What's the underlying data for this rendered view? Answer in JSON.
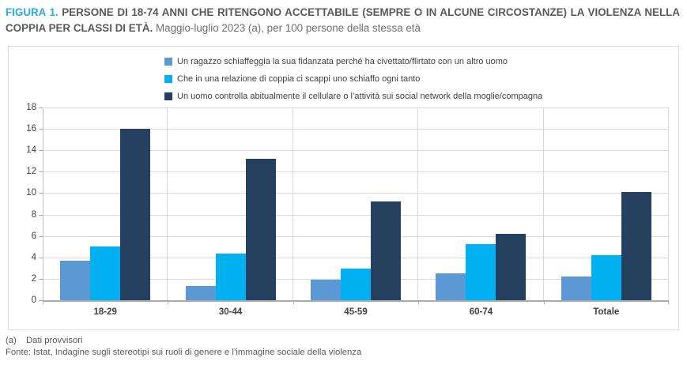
{
  "header": {
    "figure_label": "FIGURA 1.",
    "title_bold": "PERSONE DI 18-74 ANNI CHE RITENGONO ACCETTABILE (SEMPRE O IN ALCUNE CIRCOSTANZE) LA VIOLENZA NELLA COPPIA PER CLASSI DI ETÀ.",
    "subtitle": "Maggio-luglio 2023 (a), per 100 persone della stessa età"
  },
  "chart_data": {
    "type": "bar",
    "title": "Persone di 18-74 anni che ritengono accettabile (sempre o in alcune circostanze) la violenza nella coppia per classi di età",
    "subtitle": "Maggio-luglio 2023 (a), per 100 persone della stessa età",
    "categories": [
      "18-29",
      "30-44",
      "45-59",
      "60-74",
      "Totale"
    ],
    "series": [
      {
        "name": "Un ragazzo schiaffeggia la sua fidanzata perché ha civettato/flirtato con un altro uomo",
        "color": "#5B98D4",
        "values": [
          3.8,
          1.4,
          2.0,
          2.6,
          2.3
        ]
      },
      {
        "name": "Che in una relazione di coppia ci scappi uno schiaffo ogni tanto",
        "color": "#00B0F0",
        "values": [
          5.1,
          4.4,
          3.0,
          5.3,
          4.3
        ]
      },
      {
        "name": "Un uomo controlla abitualmente il cellulare o l’attività sui social network della moglie/compagna",
        "color": "#25405F",
        "values": [
          16.1,
          13.3,
          9.3,
          6.3,
          10.2
        ]
      }
    ],
    "xlabel": "",
    "ylabel": "",
    "ylim": [
      0,
      18
    ],
    "ytick_step": 2,
    "grid": true,
    "legend_position": "top-left-inside"
  },
  "footer": {
    "note_marker": "(a)",
    "note_text": "Dati provvisori",
    "source": "Fonte: Istat, Indagine sugli stereotipi sui ruoli di genere e l’immagine sociale della violenza"
  }
}
